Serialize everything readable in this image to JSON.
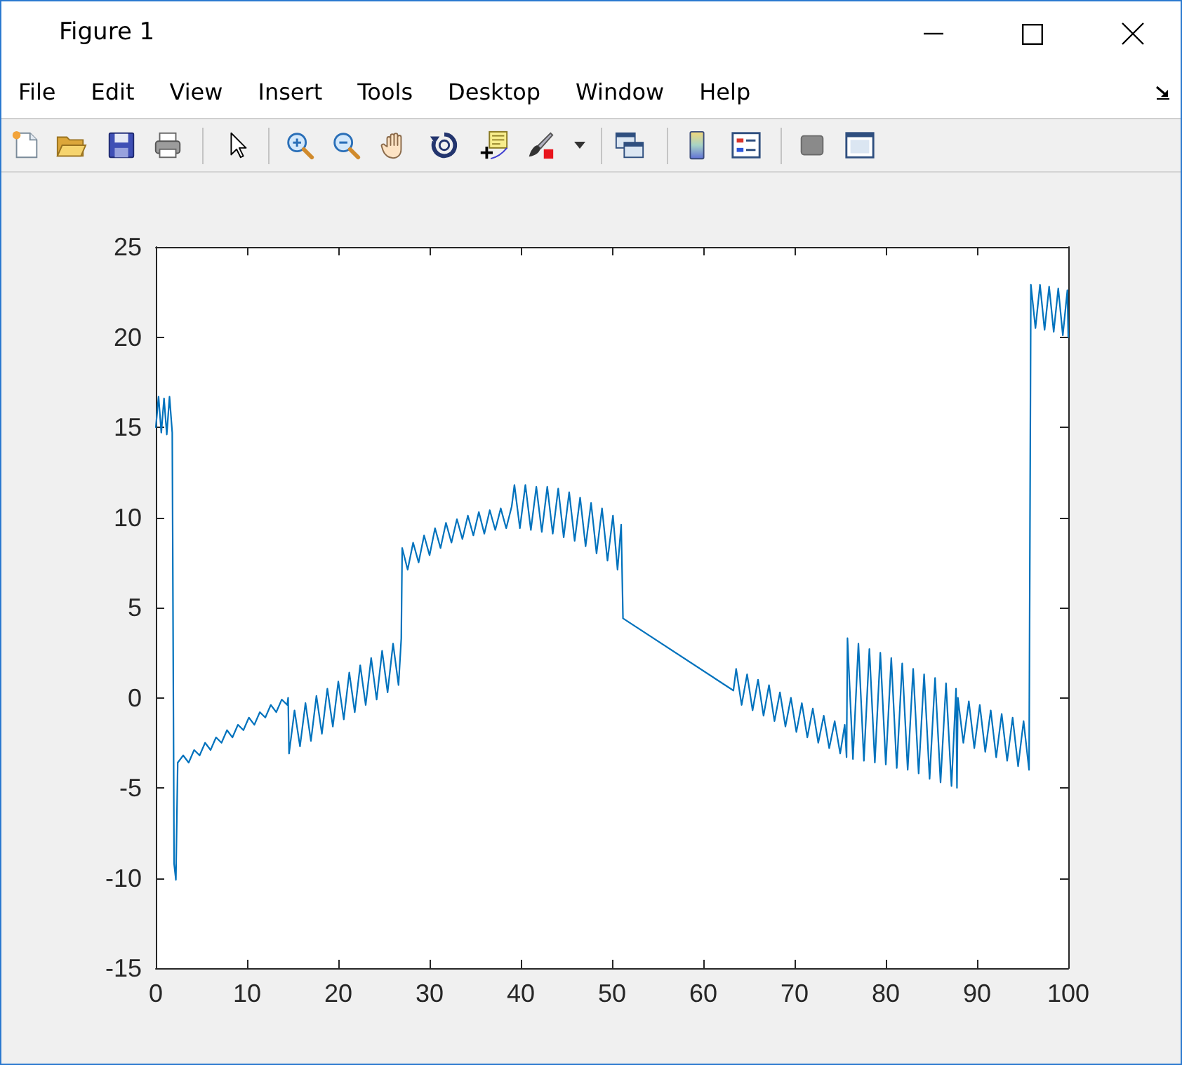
{
  "chart_data": {
    "type": "line",
    "title": "Figure 1",
    "annotations": [
      "File",
      "Edit",
      "View",
      "Insert",
      "Tools",
      "Desktop",
      "Window",
      "Help"
    ],
    "x": [
      0,
      0.3,
      0.6,
      0.9,
      1.2,
      1.5,
      1.8,
      2.0,
      2.2,
      2.4,
      3.0,
      3.6,
      4.2,
      4.8,
      5.4,
      6.0,
      6.6,
      7.2,
      7.8,
      8.4,
      9.0,
      9.6,
      10.2,
      10.8,
      11.4,
      12.0,
      12.6,
      13.2,
      13.8,
      14.4,
      14.5,
      14.6,
      15.2,
      15.8,
      16.4,
      17.0,
      17.6,
      18.2,
      18.8,
      19.4,
      20.0,
      20.6,
      21.2,
      21.8,
      22.4,
      23.0,
      23.6,
      24.2,
      24.8,
      25.4,
      26.0,
      26.6,
      26.9,
      27.0,
      27.6,
      28.2,
      28.8,
      29.4,
      30.0,
      30.6,
      31.2,
      31.8,
      32.4,
      33.0,
      33.6,
      34.2,
      34.8,
      35.4,
      36.0,
      36.6,
      37.2,
      37.8,
      38.4,
      39.0,
      39.3,
      39.9,
      40.5,
      41.1,
      41.7,
      42.3,
      42.9,
      43.5,
      44.1,
      44.7,
      45.3,
      45.9,
      46.5,
      47.1,
      47.7,
      48.3,
      48.9,
      49.5,
      50.1,
      50.6,
      51.0,
      51.2,
      63.3,
      63.6,
      64.2,
      64.8,
      65.4,
      66.0,
      66.6,
      67.2,
      67.8,
      68.4,
      69.0,
      69.6,
      70.2,
      70.8,
      71.4,
      72.0,
      72.6,
      73.2,
      73.8,
      74.4,
      75.0,
      75.5,
      75.7,
      75.8,
      76.4,
      77.0,
      77.6,
      78.2,
      78.8,
      79.4,
      80.0,
      80.6,
      81.2,
      81.8,
      82.4,
      83.0,
      83.6,
      84.2,
      84.8,
      85.4,
      86.0,
      86.6,
      87.2,
      87.7,
      87.8,
      87.9,
      88.5,
      89.1,
      89.7,
      90.3,
      90.9,
      91.5,
      92.1,
      92.7,
      93.3,
      93.9,
      94.5,
      95.1,
      95.7,
      95.9,
      96.4,
      96.9,
      97.4,
      97.9,
      98.4,
      98.9,
      99.4,
      99.9,
      100
    ],
    "values": [
      15.0,
      16.7,
      14.7,
      16.6,
      14.6,
      16.7,
      14.7,
      -9.2,
      -10.1,
      -3.6,
      -3.2,
      -3.6,
      -2.9,
      -3.2,
      -2.5,
      -2.9,
      -2.2,
      -2.5,
      -1.8,
      -2.2,
      -1.5,
      -1.8,
      -1.1,
      -1.5,
      -0.8,
      -1.1,
      -0.4,
      -0.8,
      -0.1,
      -0.4,
      0.0,
      -3.1,
      -0.7,
      -2.7,
      -0.3,
      -2.4,
      0.1,
      -2.0,
      0.5,
      -1.6,
      0.9,
      -1.2,
      1.4,
      -0.8,
      1.8,
      -0.4,
      2.2,
      -0.1,
      2.6,
      0.3,
      3.0,
      0.7,
      3.3,
      8.3,
      7.1,
      8.6,
      7.5,
      9.0,
      7.9,
      9.4,
      8.3,
      9.7,
      8.6,
      9.9,
      8.8,
      10.1,
      9.0,
      10.3,
      9.1,
      10.4,
      9.3,
      10.5,
      9.4,
      10.6,
      11.8,
      9.4,
      11.8,
      9.3,
      11.7,
      9.2,
      11.7,
      9.1,
      11.6,
      8.9,
      11.4,
      8.7,
      11.1,
      8.4,
      10.8,
      8.0,
      10.5,
      7.6,
      10.1,
      7.1,
      9.6,
      4.4,
      0.4,
      1.6,
      -0.4,
      1.3,
      -0.7,
      1.0,
      -1.0,
      0.7,
      -1.3,
      0.3,
      -1.6,
      0.0,
      -1.9,
      -0.3,
      -2.2,
      -0.6,
      -2.5,
      -1.0,
      -2.8,
      -1.3,
      -3.1,
      -1.5,
      -3.3,
      3.3,
      -3.4,
      3.0,
      -3.5,
      2.7,
      -3.6,
      2.5,
      -3.7,
      2.2,
      -3.9,
      1.9,
      -4.0,
      1.6,
      -4.2,
      1.3,
      -4.5,
      1.1,
      -4.7,
      0.8,
      -4.9,
      0.5,
      -5.0,
      0.0,
      -2.5,
      -0.2,
      -2.8,
      -0.4,
      -3.0,
      -0.7,
      -3.3,
      -0.9,
      -3.5,
      -1.1,
      -3.8,
      -1.3,
      -4.0,
      22.9,
      20.5,
      22.9,
      20.4,
      22.8,
      20.3,
      22.7,
      20.1,
      22.6,
      20.0
    ],
    "color": "#0072bd",
    "xlim": [
      0,
      100
    ],
    "xticks": [
      0,
      10,
      20,
      30,
      40,
      50,
      60,
      70,
      80,
      90,
      100
    ],
    "ylim": [
      -15,
      25
    ],
    "yticks": [
      -15,
      -10,
      -5,
      0,
      5,
      10,
      15,
      20,
      25
    ],
    "marker": "none",
    "line_style": "solid"
  }
}
